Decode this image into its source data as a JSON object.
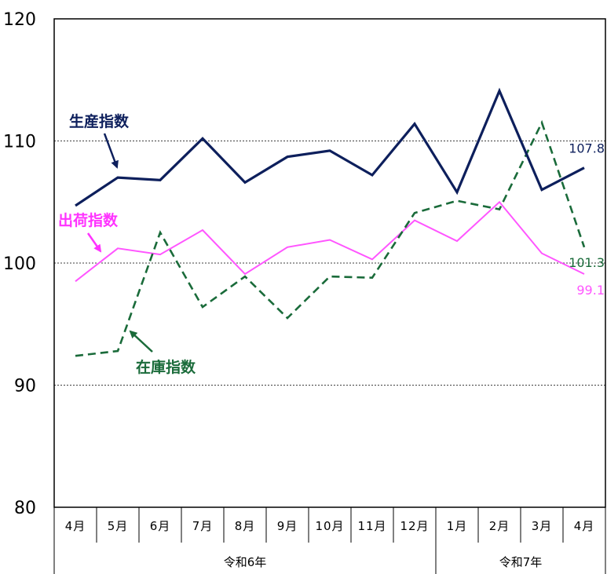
{
  "chart_data": {
    "type": "line",
    "title": "",
    "xlabel": "",
    "ylabel": "",
    "ylim": [
      80,
      120
    ],
    "yticks": [
      80,
      90,
      100,
      110,
      120
    ],
    "gridlines": [
      90,
      100,
      110
    ],
    "categories": [
      "4月",
      "5月",
      "6月",
      "7月",
      "8月",
      "9月",
      "10月",
      "11月",
      "12月",
      "1月",
      "2月",
      "3月",
      "4月"
    ],
    "year_groups": [
      {
        "label": "令和6年",
        "start": 0,
        "end": 8
      },
      {
        "label": "令和7年",
        "start": 9,
        "end": 12
      }
    ],
    "series": [
      {
        "name": "生産指数",
        "color": "#0d1f5c",
        "style": "solid",
        "end_label": "107.8",
        "values": [
          104.7,
          107.0,
          106.8,
          110.2,
          106.6,
          108.7,
          109.2,
          107.2,
          111.4,
          105.8,
          114.1,
          106.0,
          107.8
        ]
      },
      {
        "name": "出荷指数",
        "color": "#ff55ff",
        "style": "solid",
        "end_label": "99.1",
        "values": [
          98.5,
          101.2,
          100.7,
          102.7,
          99.1,
          101.3,
          101.9,
          100.3,
          103.5,
          101.8,
          105.0,
          100.8,
          99.1
        ]
      },
      {
        "name": "在庫指数",
        "color": "#1a6b3a",
        "style": "dashed",
        "end_label": "101.3",
        "values": [
          92.4,
          92.8,
          102.5,
          96.4,
          98.9,
          95.5,
          98.9,
          98.8,
          104.1,
          105.1,
          104.4,
          111.5,
          101.3
        ]
      }
    ]
  }
}
